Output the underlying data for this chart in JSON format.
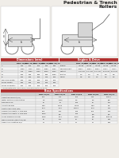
{
  "title_line1": "Pedestrian & Trench",
  "title_line2": "Rollers",
  "background_color": "#f0ede8",
  "table1_header": "Dimensions (mm)",
  "table1_header_bg": "#b03030",
  "table1_col_headers": [
    "",
    "BPR 25/50",
    "BPR 35/42",
    "BPR 45/55",
    "BPR 55/65",
    "BPR 65/75"
  ],
  "table1_rows": [
    [
      "A",
      "630",
      "700",
      "780",
      "860",
      "930"
    ],
    [
      "B",
      "1050",
      "1120",
      "1200",
      "1280",
      "1350"
    ],
    [
      "C",
      "970",
      "1050",
      "1130",
      "1220",
      "1300"
    ],
    [
      "D",
      "750",
      "820",
      "900",
      "980",
      "1050"
    ],
    [
      "E",
      "180",
      "200",
      "220",
      "240",
      "260"
    ],
    [
      "Machine Width",
      "550",
      "600",
      "650",
      "700",
      "750"
    ],
    [
      "Drum Width",
      "450",
      "500",
      "550",
      "600",
      "650"
    ],
    [
      "Drum Diameter",
      "180",
      "180",
      "200",
      "200",
      "220"
    ]
  ],
  "table2_header": "Engine & Drive",
  "table2_header_bg": "#b03030",
  "table2_col_headers": [
    "",
    "BPR 25/50",
    "BPR 35/42",
    "BPR 45/55",
    "BPR 55/65",
    "BPR 65/75"
  ],
  "table2_rows": [
    [
      "Engine",
      "Honda",
      "Honda",
      "Honda",
      "Honda",
      "Honda"
    ],
    [
      "Displacement",
      "163cc",
      "196cc",
      "196cc",
      "270cc",
      "270cc"
    ],
    [
      "Output",
      "3.5 kW",
      "4.1 kW",
      "4.1 kW",
      "5.5 kW",
      "5.5 kW"
    ],
    [
      "Exciter",
      "1.5",
      "2.0",
      "2.5",
      "3.0",
      "3.5"
    ],
    [
      "ROPD",
      "3.5",
      "4.0",
      "4.5",
      "5.0",
      "5.5"
    ]
  ],
  "table3_header": "Base Specifications",
  "table3_header_bg": "#b03030",
  "table3_col_headers": [
    "",
    "BPR 25/50",
    "BPR 35/42",
    "BPR 45/55",
    "BPR 55/65",
    "BPR 65/75"
  ],
  "table3_rows": [
    [
      "Operating Weight (kg)",
      "250",
      "370",
      "560",
      "310",
      "73000"
    ],
    [
      "Water system consumption",
      "4.0",
      "1000",
      "5.0",
      "5.0",
      "n/a"
    ],
    [
      "Frequency Hz",
      "65",
      "65",
      "130",
      "65",
      "260"
    ],
    [
      "Amplitude mm",
      "0.55",
      "0.400",
      "0.025",
      "0.55",
      "0.6"
    ],
    [
      "Centrifugal Force (kN)",
      "25.0",
      "35.0",
      "45000",
      "55.0",
      "730"
    ],
    [
      "Compaction depth, 1 side mm",
      "250",
      "350",
      "190",
      "350",
      "730"
    ],
    [
      "Compaction depth, 2 side mm",
      "1800",
      "n/a",
      "190",
      "n/a",
      "n/a"
    ],
    [
      "Drum Dimensions mm",
      "1800",
      "50-5",
      "5510",
      "n/a",
      "500000"
    ],
    [
      "Machine Noise (reported) dB",
      "65",
      "260",
      "65",
      "80",
      "810"
    ],
    [
      "Hand Arm Vibration m/s",
      "21",
      "5",
      "21",
      "21",
      "810"
    ]
  ],
  "alt_row_bg": "#e8e8e8",
  "normal_row_bg": "#f5f5f5",
  "col_header_bg": "#d0d0d0",
  "border_color": "#bbbbbb"
}
